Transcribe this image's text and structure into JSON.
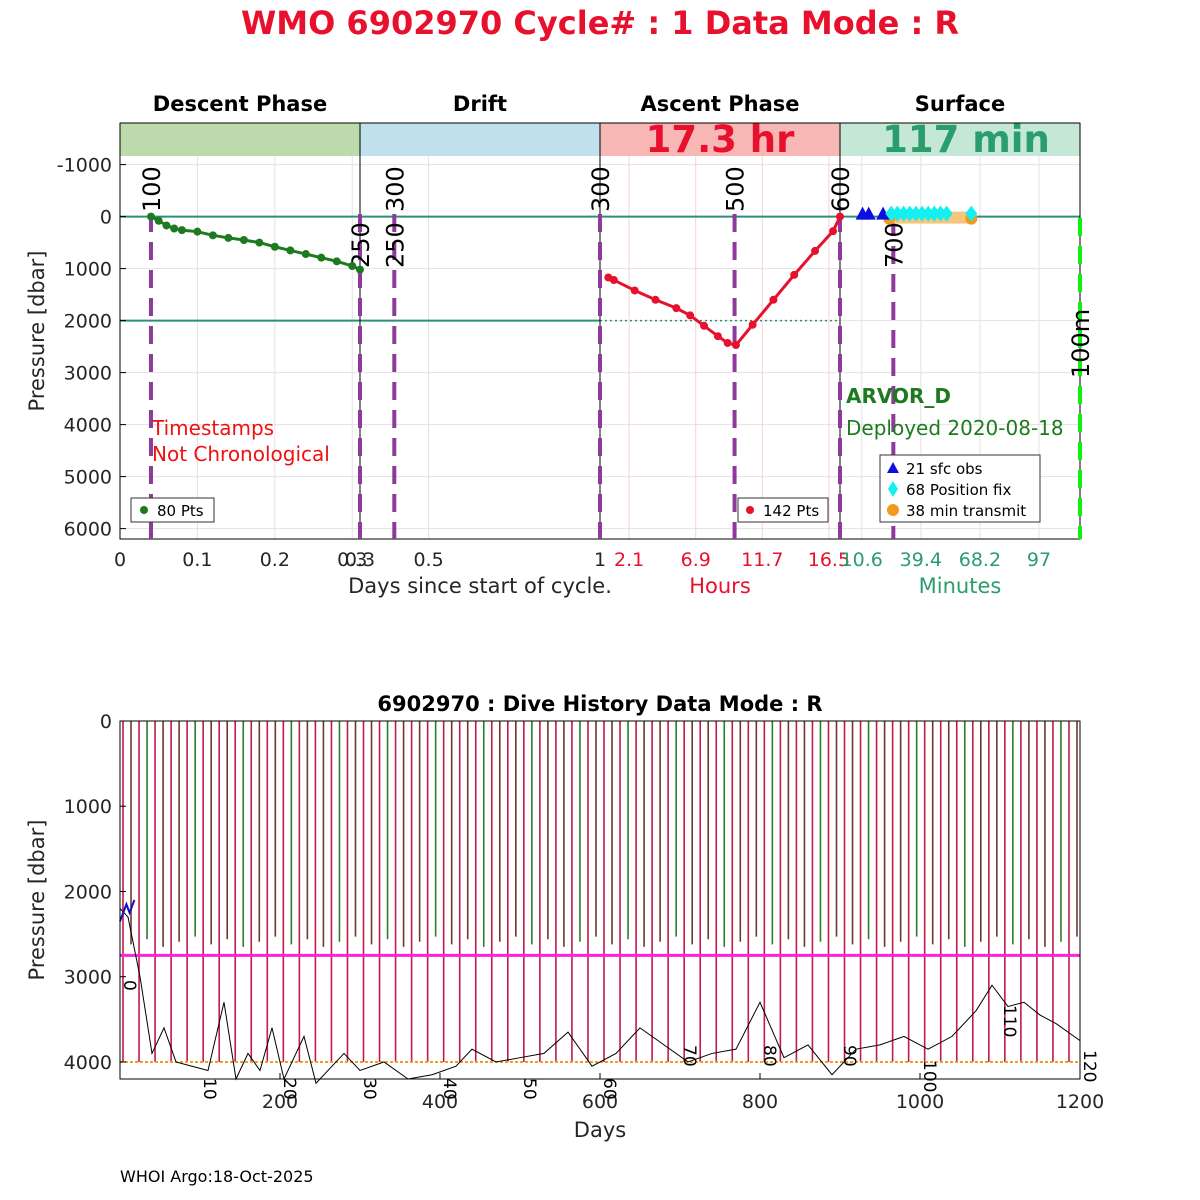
{
  "title": "WMO 6902970   Cycle# : 1   Data Mode : R",
  "footer": "WHOI Argo:18-Oct-2025",
  "colors": {
    "title": "#e8112d",
    "descent": "#1e7a1e",
    "ascent": "#e8112d",
    "surface_text": "#2a9d6e",
    "ascent_band": "#f7b7b4",
    "descent_band": "#bcdaab",
    "drift_band": "#c0e1ec",
    "surface_band": "#c5e8d6",
    "marker": "#8e3a9b"
  },
  "chart_data": [
    {
      "type": "line",
      "name": "cycle-profile",
      "ylabel": "Pressure [dbar]",
      "ylim": [
        6200,
        -1800
      ],
      "yticks": [
        -1000,
        0,
        1000,
        2000,
        3000,
        4000,
        5000,
        6000
      ],
      "reference_lines": [
        0,
        2000
      ],
      "panels": {
        "descent": {
          "header": "Descent Phase",
          "xlim": [
            0,
            0.31
          ],
          "xticks": [
            "0",
            "0.1",
            "0.2",
            "0.3"
          ],
          "xtick_values": [
            0,
            0.1,
            0.2,
            0.3
          ],
          "xlabel": "Days since start of cycle.",
          "series": {
            "name": "descent",
            "x": [
              0.04,
              0.05,
              0.06,
              0.07,
              0.08,
              0.1,
              0.12,
              0.14,
              0.16,
              0.18,
              0.2,
              0.22,
              0.24,
              0.26,
              0.28,
              0.3,
              0.31
            ],
            "y": [
              0,
              80,
              170,
              230,
              260,
              290,
              360,
              410,
              450,
              500,
              580,
              650,
              720,
              790,
              860,
              950,
              1020
            ]
          },
          "legend": "80 Pts",
          "note": [
            "Timestamps",
            "Not Chronological"
          ],
          "markers": [
            {
              "x": 0.04,
              "label": "100"
            },
            {
              "x": 0.31,
              "label": "250"
            }
          ]
        },
        "drift": {
          "header": "Drift",
          "xlim": [
            0.3,
            1
          ],
          "xticks": [
            "0.3",
            "0.5",
            "1"
          ],
          "xtick_values": [
            0.3,
            0.5,
            1
          ],
          "markers": [
            {
              "x": 0.4,
              "label": "250"
            },
            {
              "x": 0.4,
              "label": "300"
            },
            {
              "x": 1,
              "label": "300"
            }
          ]
        },
        "ascent": {
          "header": "Ascent Phase",
          "duration": "17.3 hr",
          "xlim": [
            0,
            17.3
          ],
          "xticks": [
            "2.1",
            "6.9",
            "11.7",
            "16.5"
          ],
          "xtick_values": [
            2.1,
            6.9,
            11.7,
            16.5
          ],
          "xlabel": "Hours",
          "series": {
            "name": "ascent",
            "x": [
              0.6,
              1.0,
              2.5,
              4.0,
              5.5,
              6.5,
              7.5,
              8.5,
              9.2,
              9.8,
              11.0,
              12.5,
              14.0,
              15.5,
              16.8,
              17.3
            ],
            "y": [
              1170,
              1220,
              1420,
              1600,
              1760,
              1900,
              2100,
              2300,
              2430,
              2470,
              2080,
              1600,
              1120,
              660,
              280,
              0
            ]
          },
          "legend": "142 Pts",
          "markers": [
            {
              "x": 9.7,
              "label": "500"
            },
            {
              "x": 17.3,
              "label": "600"
            }
          ]
        },
        "surface": {
          "header": "Surface",
          "duration": "117 min",
          "xlim": [
            0,
            117
          ],
          "xticks": [
            "10.6",
            "39.4",
            "68.2",
            "97"
          ],
          "xtick_values": [
            10.6,
            39.4,
            68.2,
            97
          ],
          "xlabel": "Minutes",
          "float_type": "ARVOR_D",
          "deployed": "Deployed 2020-08-18",
          "markers": [
            {
              "x": 26,
              "label": "700"
            },
            {
              "x": 117,
              "label": "100m"
            }
          ],
          "legend": [
            "21 sfc obs",
            "68 Position fix",
            "38 min transmit"
          ],
          "sfc_obs_x": [
            11,
            14,
            21
          ],
          "fix_x": [
            25,
            28,
            31,
            34,
            37,
            40,
            43,
            46,
            49,
            52,
            64
          ],
          "transmit_x": [
            24,
            64
          ]
        }
      }
    },
    {
      "type": "line",
      "name": "dive-history",
      "title": "6902970 : Dive History      Data Mode : R",
      "xlabel": "Days",
      "ylabel": "Pressure [dbar]",
      "xlim": [
        0,
        1200
      ],
      "ylim": [
        0,
        4200
      ],
      "xticks": [
        200,
        400,
        600,
        800,
        1000,
        1200
      ],
      "yticks": [
        0,
        1000,
        2000,
        3000,
        4000
      ],
      "cycle_labels": [
        "0",
        "10",
        "20",
        "30",
        "40",
        "50",
        "60",
        "70",
        "80",
        "90",
        "100",
        "110",
        "120"
      ],
      "cycles": 120,
      "parking_pressure": 2750,
      "target_pressure": 4000,
      "bathymetry": {
        "x": [
          0,
          10,
          25,
          40,
          55,
          70,
          90,
          110,
          130,
          145,
          160,
          175,
          190,
          205,
          215,
          230,
          245,
          265,
          280,
          300,
          330,
          360,
          390,
          420,
          440,
          470,
          500,
          530,
          560,
          590,
          620,
          650,
          680,
          710,
          740,
          770,
          800,
          830,
          860,
          890,
          920,
          950,
          980,
          1010,
          1040,
          1070,
          1090,
          1110,
          1130,
          1150,
          1170,
          1200
        ],
        "y": [
          2200,
          2300,
          3000,
          3900,
          3600,
          4000,
          4050,
          4100,
          3300,
          4200,
          3900,
          4100,
          3600,
          4200,
          4000,
          3700,
          4250,
          4050,
          3900,
          4100,
          4000,
          4200,
          4150,
          4050,
          3850,
          4000,
          3950,
          3900,
          3650,
          4050,
          3900,
          3600,
          3800,
          4000,
          3900,
          3850,
          3300,
          3950,
          3800,
          4150,
          3850,
          3800,
          3700,
          3850,
          3700,
          3400,
          3100,
          3350,
          3300,
          3450,
          3550,
          3750
        ]
      }
    }
  ]
}
